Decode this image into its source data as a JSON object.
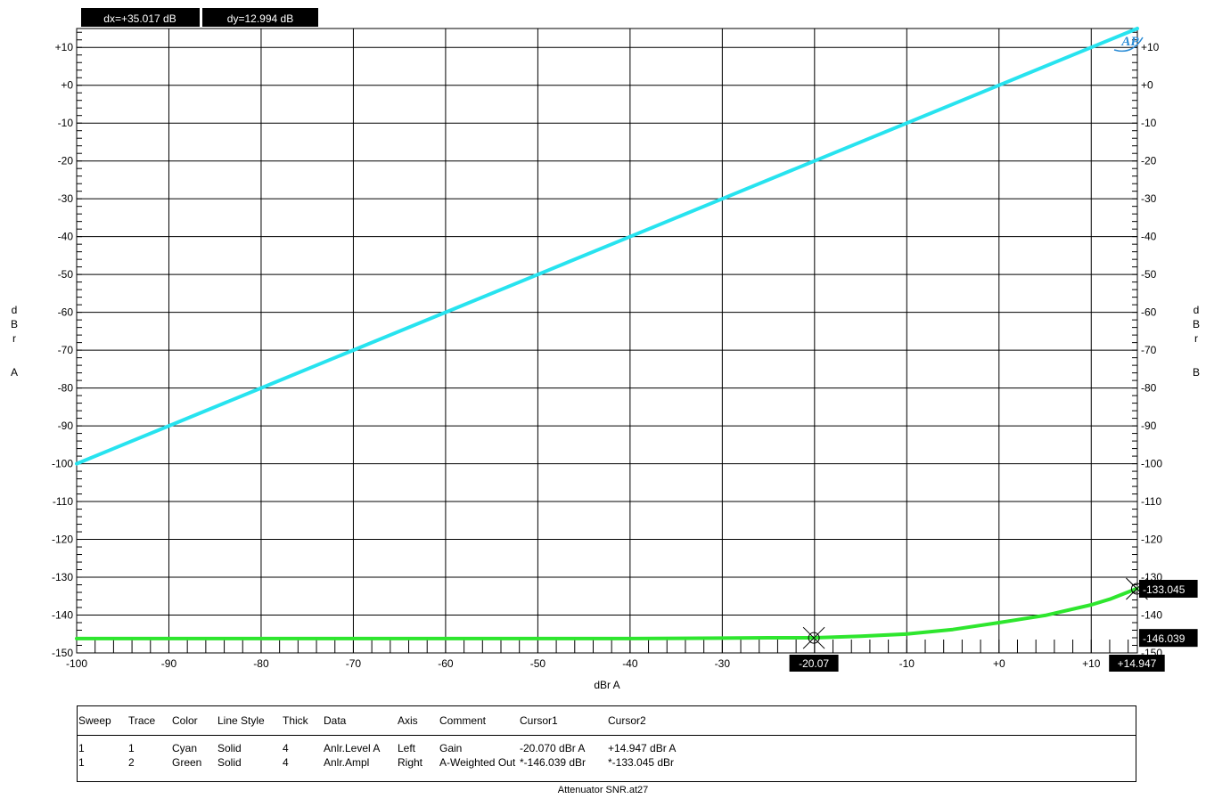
{
  "readouts": {
    "dx": "dx=+35.017  dB",
    "dy": "dy=12.994  dB"
  },
  "chart_data": {
    "type": "line",
    "xlabel": "dBr A",
    "ylabel_left": [
      "d",
      "B",
      "r",
      "A"
    ],
    "ylabel_right": [
      "d",
      "B",
      "r",
      "B"
    ],
    "xlim": [
      -100,
      15
    ],
    "ylim": [
      -150,
      15
    ],
    "grid": true,
    "x_ticks": [
      {
        "value": -100,
        "label": "-100"
      },
      {
        "value": -90,
        "label": "-90"
      },
      {
        "value": -80,
        "label": "-80"
      },
      {
        "value": -70,
        "label": "-70"
      },
      {
        "value": -60,
        "label": "-60"
      },
      {
        "value": -50,
        "label": "-50"
      },
      {
        "value": -40,
        "label": "-40"
      },
      {
        "value": -30,
        "label": "-30"
      },
      {
        "value": -20,
        "label": "-20"
      },
      {
        "value": -10,
        "label": "-10"
      },
      {
        "value": 0,
        "label": "+0"
      },
      {
        "value": 10,
        "label": "+10"
      }
    ],
    "y_ticks_left": [
      {
        "value": 10,
        "label": "+10"
      },
      {
        "value": 0,
        "label": "+0"
      },
      {
        "value": -10,
        "label": "-10"
      },
      {
        "value": -20,
        "label": "-20"
      },
      {
        "value": -30,
        "label": "-30"
      },
      {
        "value": -40,
        "label": "-40"
      },
      {
        "value": -50,
        "label": "-50"
      },
      {
        "value": -60,
        "label": "-60"
      },
      {
        "value": -70,
        "label": "-70"
      },
      {
        "value": -80,
        "label": "-80"
      },
      {
        "value": -90,
        "label": "-90"
      },
      {
        "value": -100,
        "label": "-100"
      },
      {
        "value": -110,
        "label": "-110"
      },
      {
        "value": -120,
        "label": "-120"
      },
      {
        "value": -130,
        "label": "-130"
      },
      {
        "value": -140,
        "label": "-140"
      },
      {
        "value": -150,
        "label": "-150"
      }
    ],
    "y_ticks_right": [
      {
        "value": 10,
        "label": "+10"
      },
      {
        "value": 0,
        "label": "+0"
      },
      {
        "value": -10,
        "label": "-10"
      },
      {
        "value": -20,
        "label": "-20"
      },
      {
        "value": -30,
        "label": "-30"
      },
      {
        "value": -40,
        "label": "-40"
      },
      {
        "value": -50,
        "label": "-50"
      },
      {
        "value": -60,
        "label": "-60"
      },
      {
        "value": -70,
        "label": "-70"
      },
      {
        "value": -80,
        "label": "-80"
      },
      {
        "value": -90,
        "label": "-90"
      },
      {
        "value": -100,
        "label": "-100"
      },
      {
        "value": -110,
        "label": "-110"
      },
      {
        "value": -120,
        "label": "-120"
      },
      {
        "value": -130,
        "label": "-130"
      },
      {
        "value": -140,
        "label": "-140"
      },
      {
        "value": -150,
        "label": "-150"
      }
    ],
    "series": [
      {
        "trace": "1",
        "color": "#27e3ef",
        "x": [
          -100,
          -90,
          -80,
          -70,
          -60,
          -50,
          -40,
          -30,
          -20,
          -10,
          0,
          10,
          15
        ],
        "y": [
          -100,
          -90,
          -80,
          -70,
          -60,
          -50,
          -40,
          -30,
          -20,
          -10,
          0,
          10,
          15
        ]
      },
      {
        "trace": "2",
        "color": "#2ee62e",
        "x": [
          -100,
          -90,
          -80,
          -70,
          -60,
          -50,
          -40,
          -30,
          -25,
          -20,
          -15,
          -10,
          -5,
          0,
          5,
          10,
          12,
          14.947
        ],
        "y": [
          -146.2,
          -146.2,
          -146.2,
          -146.2,
          -146.2,
          -146.2,
          -146.2,
          -146.1,
          -146.0,
          -146.0,
          -145.6,
          -145.0,
          -143.8,
          -142.0,
          -140.1,
          -137.3,
          -135.8,
          -133.0
        ]
      }
    ],
    "cursors": [
      {
        "x": -20.07,
        "y": -146.039,
        "x_label": "-20.07",
        "y_label": "-146.039"
      },
      {
        "x": 14.947,
        "y": -133.045,
        "x_label": "+14.947",
        "y_label": "-133.045"
      }
    ]
  },
  "legend": {
    "headers": [
      "Sweep",
      "Trace",
      "Color",
      "Line Style",
      "Thick",
      "Data",
      "Axis",
      "Comment",
      "Cursor1",
      "Cursor2"
    ],
    "rows": [
      [
        "1",
        "1",
        "Cyan",
        "Solid",
        "4",
        "Anlr.Level A",
        "Left",
        "Gain",
        "-20.070  dBr A",
        "+14.947  dBr A"
      ],
      [
        "1",
        "2",
        "Green",
        "Solid",
        "4",
        "Anlr.Ampl",
        "Right",
        "A-Weighted Out",
        "*-146.039 dBr",
        "*-133.045 dBr"
      ]
    ]
  },
  "footer": "Attenuator  SNR.at27"
}
